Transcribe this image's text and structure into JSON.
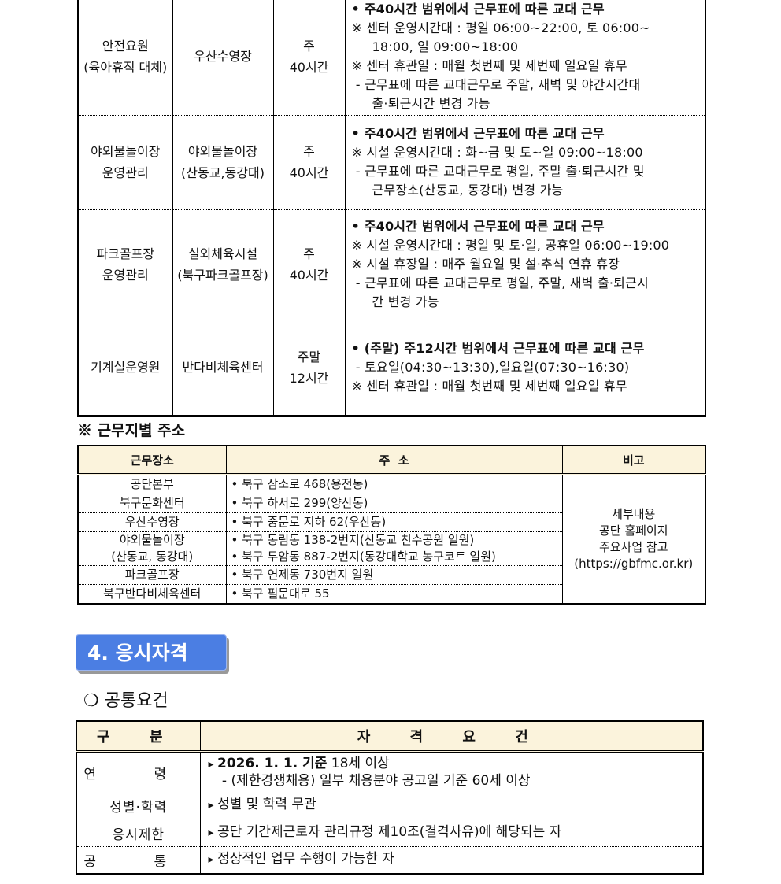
{
  "work_table": {
    "rows": [
      {
        "job": [
          "안전요원",
          "(육아휴직 대체)"
        ],
        "place": [
          "우산수영장"
        ],
        "hours": [
          "주",
          "40시간"
        ],
        "details": [
          {
            "text": "• 주40시간 범위에서 근무표에 따른 교대 근무",
            "bold": true
          },
          {
            "text": "※ 센터 운영시간대 : 평일 06:00~22:00, 토 06:00~"
          },
          {
            "text": "18:00, 일 09:00~18:00",
            "indent": true
          },
          {
            "text": "※ 센터 휴관일 : 매월 첫번째 및 세번째 일요일 휴무"
          },
          {
            "text": " - 근무표에 따른 교대근무로 주말, 새벽 및 야간시간대"
          },
          {
            "text": "출·퇴근시간 변경 가능",
            "indent": true
          }
        ]
      },
      {
        "job": [
          "야외물놀이장",
          "운영관리"
        ],
        "place": [
          "야외물놀이장",
          "(산동교,동강대)"
        ],
        "hours": [
          "주",
          "40시간"
        ],
        "details": [
          {
            "text": "• 주40시간 범위에서 근무표에 따른 교대 근무",
            "bold": true
          },
          {
            "text": "※ 시설 운영시간대 : 화~금 및 토~일 09:00~18:00"
          },
          {
            "text": " - 근무표에 따른 교대근무로 평일, 주말 출·퇴근시간 및"
          },
          {
            "text": "근무장소(산동교, 동강대) 변경 가능",
            "indent": true
          }
        ]
      },
      {
        "job": [
          "파크골프장",
          "운영관리"
        ],
        "place": [
          "실외체육시설",
          "(북구파크골프장)"
        ],
        "hours": [
          "주",
          "40시간"
        ],
        "details": [
          {
            "text": "• 주40시간 범위에서 근무표에 따른 교대 근무",
            "bold": true
          },
          {
            "text": "※ 시설 운영시간대 : 평일 및 토·일, 공휴일 06:00~19:00"
          },
          {
            "text": "※ 시설 휴장일 : 매주 월요일 및 설·추석 연휴 휴장"
          },
          {
            "text": " - 근무표에 따른 교대근무로 평일, 주말, 새벽 출·퇴근시"
          },
          {
            "text": "간 변경 가능",
            "indent": true
          }
        ]
      },
      {
        "job": [
          "기계실운영원"
        ],
        "place": [
          "반다비체육센터"
        ],
        "hours": [
          "주말",
          "12시간"
        ],
        "details": [
          {
            "text": "• (주말) 주12시간 범위에서 근무표에 따른 교대 근무",
            "bold": true
          },
          {
            "text": " - 토요일(04:30~13:30),일요일(07:30~16:30)"
          },
          {
            "text": "※ 센터 휴관일 : 매월 첫번째 및 세번째 일요일 휴무"
          }
        ]
      }
    ]
  },
  "address_section": {
    "title": "※ 근무지별 주소",
    "headers": [
      "근무장소",
      "주  소",
      "비고"
    ],
    "rows": [
      {
        "place": [
          "공단본부"
        ],
        "address": [
          "• 북구 삼소로 468(용전동)"
        ]
      },
      {
        "place": [
          "북구문화센터"
        ],
        "address": [
          "• 북구 하서로 299(양산동)"
        ]
      },
      {
        "place": [
          "우산수영장"
        ],
        "address": [
          "• 북구 중문로 지하 62(우산동)"
        ]
      },
      {
        "place": [
          "야외물놀이장",
          "(산동교, 동강대)"
        ],
        "address": [
          "• 북구 동림동 138-2번지(산동교 친수공원 일원)",
          "• 북구 두암동 887-2번지(동강대학교 농구코트 일원)"
        ]
      },
      {
        "place": [
          "파크골프장"
        ],
        "address": [
          "• 북구 연제동 730번지 일원"
        ]
      },
      {
        "place": [
          "북구반다비체육센터"
        ],
        "address": [
          "• 북구 필문대로 55"
        ]
      }
    ],
    "note": [
      "세부내용",
      "공단 홈페이지",
      "주요사업 참고",
      "(https://gbfmc.or.kr)"
    ]
  },
  "qualification": {
    "section_title": "4. 응시자격",
    "subtitle": "❍ 공통요건",
    "headers": [
      "구 분",
      "자 격 요 건"
    ],
    "rows": [
      {
        "label": "연 령",
        "lines": [
          {
            "bold": "2026. 1. 1. 기준",
            "rest": " 18세 이상"
          },
          {
            "rest": " - (제한경쟁채용) 일부 채용분야 공고일 기준 60세 이상"
          }
        ]
      },
      {
        "label": "성별·학력",
        "lines": [
          {
            "rest": "성별 및 학력 무관"
          }
        ]
      },
      {
        "label": "응시제한",
        "lines": [
          {
            "rest": "공단 기간제근로자 관리규정 제10조(결격사유)에 해당되는 자"
          }
        ]
      },
      {
        "label": "공 통",
        "lines": [
          {
            "rest": "정상적인 업무 수행이 가능한 자"
          }
        ]
      }
    ]
  },
  "colors": {
    "header_bg": "#fbf3dc",
    "badge": "#4b7ee3"
  }
}
